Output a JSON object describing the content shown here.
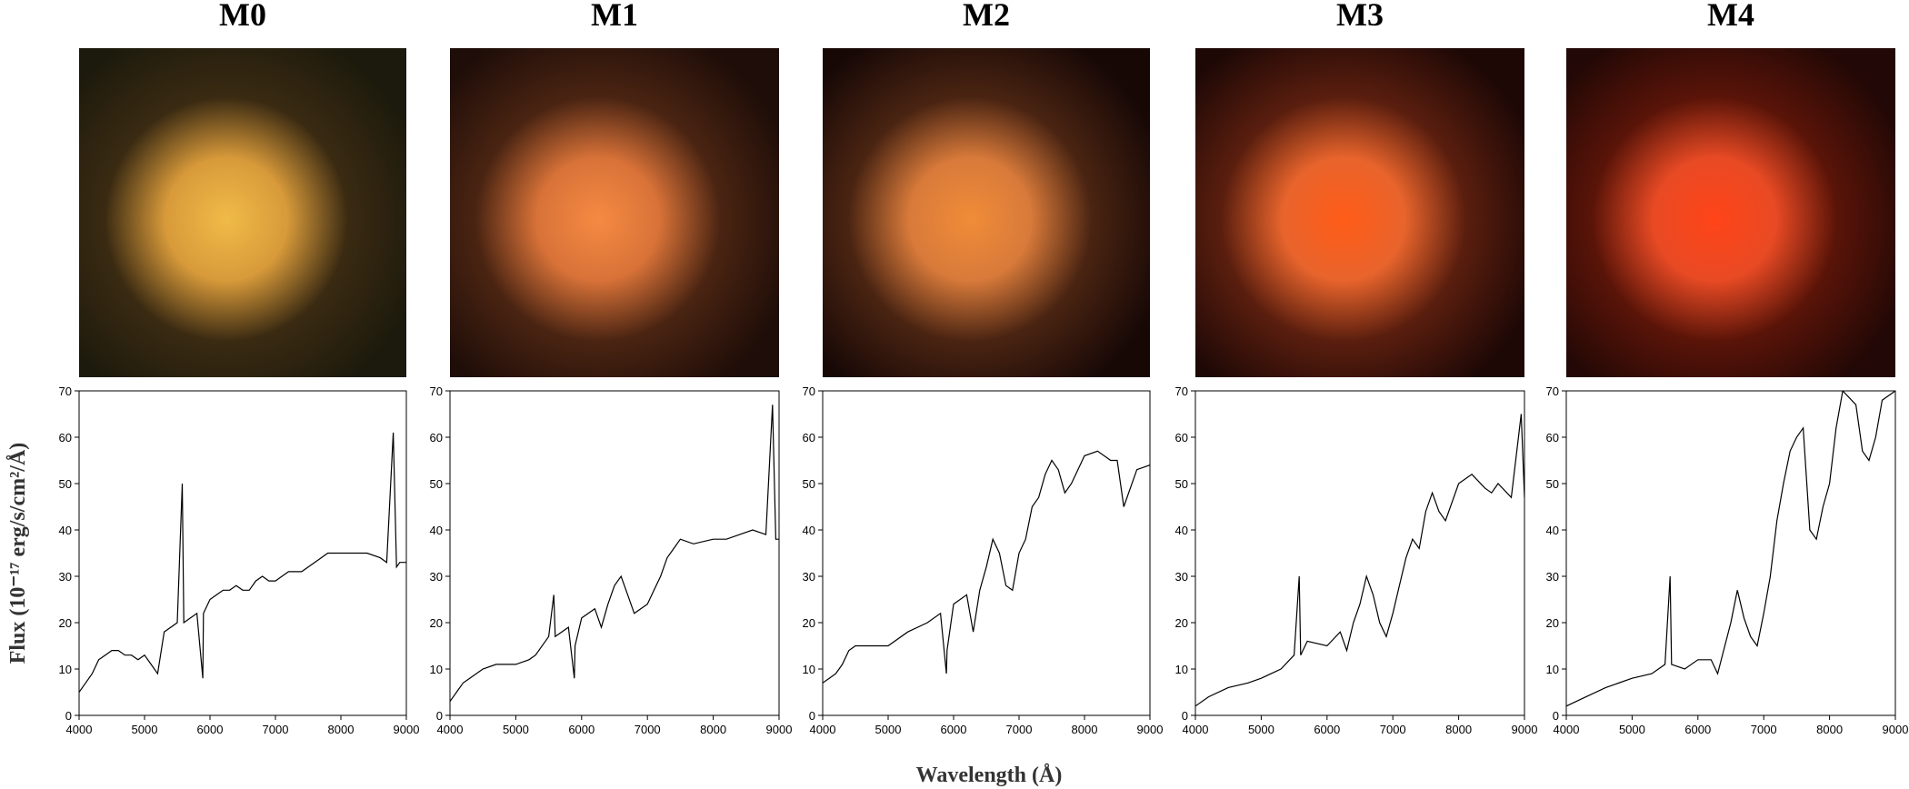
{
  "chart_data": [
    {
      "type": "line",
      "title": "M0",
      "y_label": "Flux (10⁻¹⁷ erg/s/cm²/Å)",
      "x": [
        4000,
        4100,
        4200,
        4300,
        4400,
        4500,
        4600,
        4700,
        4800,
        4900,
        5000,
        5100,
        5200,
        5300,
        5400,
        5500,
        5577,
        5600,
        5700,
        5800,
        5890,
        5900,
        6000,
        6100,
        6200,
        6300,
        6400,
        6500,
        6600,
        6700,
        6800,
        6900,
        7000,
        7200,
        7400,
        7600,
        7800,
        8000,
        8200,
        8400,
        8600,
        8700,
        8800,
        8850,
        8900,
        9000
      ],
      "values": [
        5,
        7,
        9,
        12,
        13,
        14,
        14,
        13,
        13,
        12,
        13,
        11,
        9,
        18,
        19,
        20,
        50,
        20,
        21,
        22,
        8,
        22,
        25,
        26,
        27,
        27,
        28,
        27,
        27,
        29,
        30,
        29,
        29,
        31,
        31,
        33,
        35,
        35,
        35,
        35,
        34,
        33,
        61,
        32,
        33,
        33
      ],
      "xlim": [
        4000,
        9000
      ],
      "ylim": [
        0,
        70
      ],
      "xticks": [
        4000,
        5000,
        6000,
        7000,
        8000,
        9000
      ],
      "yticks": [
        0,
        10,
        20,
        30,
        40,
        50,
        60,
        70
      ],
      "color": "#000000"
    },
    {
      "type": "line",
      "title": "M1",
      "x": [
        4000,
        4100,
        4200,
        4300,
        4500,
        4700,
        5000,
        5200,
        5300,
        5500,
        5577,
        5600,
        5800,
        5890,
        5900,
        6000,
        6200,
        6300,
        6400,
        6500,
        6600,
        6700,
        6800,
        7000,
        7100,
        7200,
        7300,
        7400,
        7500,
        7700,
        8000,
        8200,
        8400,
        8600,
        8800,
        8900,
        8950,
        9000
      ],
      "values": [
        3,
        5,
        7,
        8,
        10,
        11,
        11,
        12,
        13,
        17,
        26,
        17,
        19,
        8,
        15,
        21,
        23,
        19,
        24,
        28,
        30,
        26,
        22,
        24,
        27,
        30,
        34,
        36,
        38,
        37,
        38,
        38,
        39,
        40,
        39,
        67,
        38,
        38
      ],
      "xlim": [
        4000,
        9000
      ],
      "ylim": [
        0,
        70
      ],
      "xticks": [
        4000,
        5000,
        6000,
        7000,
        8000,
        9000
      ],
      "yticks": [
        0,
        10,
        20,
        30,
        40,
        50,
        60,
        70
      ],
      "color": "#000000"
    },
    {
      "type": "line",
      "title": "M2",
      "x_label": "Wavelength (Å)",
      "x": [
        4000,
        4100,
        4200,
        4300,
        4400,
        4500,
        4700,
        5000,
        5300,
        5600,
        5800,
        5890,
        5900,
        6000,
        6200,
        6300,
        6400,
        6500,
        6600,
        6700,
        6800,
        6900,
        7000,
        7100,
        7200,
        7300,
        7400,
        7500,
        7600,
        7700,
        7800,
        8000,
        8200,
        8400,
        8500,
        8600,
        8800,
        9000
      ],
      "values": [
        7,
        8,
        9,
        11,
        14,
        15,
        15,
        15,
        18,
        20,
        22,
        9,
        14,
        24,
        26,
        18,
        27,
        32,
        38,
        35,
        28,
        27,
        35,
        38,
        45,
        47,
        52,
        55,
        53,
        48,
        50,
        56,
        57,
        55,
        55,
        45,
        53,
        54
      ],
      "xlim": [
        4000,
        9000
      ],
      "ylim": [
        0,
        70
      ],
      "xticks": [
        4000,
        5000,
        6000,
        7000,
        8000,
        9000
      ],
      "yticks": [
        0,
        10,
        20,
        30,
        40,
        50,
        60,
        70
      ],
      "color": "#000000"
    },
    {
      "type": "line",
      "title": "M3",
      "x": [
        4000,
        4200,
        4500,
        4800,
        5000,
        5300,
        5500,
        5577,
        5600,
        5700,
        6000,
        6200,
        6300,
        6400,
        6500,
        6600,
        6700,
        6800,
        6900,
        7000,
        7100,
        7200,
        7300,
        7400,
        7500,
        7600,
        7700,
        7800,
        8000,
        8200,
        8400,
        8500,
        8600,
        8800,
        8950,
        9000
      ],
      "values": [
        2,
        4,
        6,
        7,
        8,
        10,
        13,
        30,
        13,
        16,
        15,
        18,
        14,
        20,
        24,
        30,
        26,
        20,
        17,
        22,
        28,
        34,
        38,
        36,
        44,
        48,
        44,
        42,
        50,
        52,
        49,
        48,
        50,
        47,
        65,
        47
      ],
      "xlim": [
        4000,
        9000
      ],
      "ylim": [
        0,
        70
      ],
      "xticks": [
        4000,
        5000,
        6000,
        7000,
        8000,
        9000
      ],
      "yticks": [
        0,
        10,
        20,
        30,
        40,
        50,
        60,
        70
      ],
      "color": "#000000"
    },
    {
      "type": "line",
      "title": "M4",
      "x": [
        4000,
        4300,
        4600,
        5000,
        5300,
        5500,
        5577,
        5600,
        5800,
        6000,
        6200,
        6300,
        6500,
        6600,
        6700,
        6800,
        6900,
        7000,
        7100,
        7200,
        7300,
        7400,
        7500,
        7600,
        7700,
        7800,
        7900,
        8000,
        8100,
        8200,
        8400,
        8500,
        8600,
        8700,
        8800,
        9000
      ],
      "values": [
        2,
        4,
        6,
        8,
        9,
        11,
        30,
        11,
        10,
        12,
        12,
        9,
        20,
        27,
        21,
        17,
        15,
        22,
        30,
        42,
        50,
        57,
        60,
        62,
        40,
        38,
        45,
        50,
        62,
        70,
        67,
        57,
        55,
        60,
        68,
        70
      ],
      "xlim": [
        4000,
        9000
      ],
      "ylim": [
        0,
        70
      ],
      "xticks": [
        4000,
        5000,
        6000,
        7000,
        8000,
        9000
      ],
      "yticks": [
        0,
        10,
        20,
        30,
        40,
        50,
        60,
        70
      ],
      "color": "#000000"
    }
  ]
}
